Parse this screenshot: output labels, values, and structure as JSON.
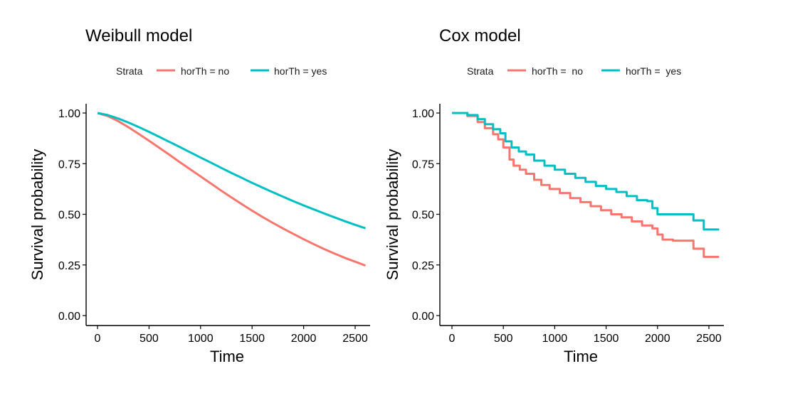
{
  "colors": {
    "no": "#F8766D",
    "yes": "#00BFC4",
    "axis": "#000000"
  },
  "chart_data": [
    {
      "type": "line",
      "title": "Weibull model",
      "xlabel": "Time",
      "ylabel": "Survival probability",
      "xlim": [
        0,
        2600
      ],
      "ylim": [
        0,
        1
      ],
      "x_ticks": [
        "0",
        "500",
        "1000",
        "1500",
        "2000",
        "2500"
      ],
      "y_ticks": [
        "0.00",
        "0.25",
        "0.50",
        "0.75",
        "1.00"
      ],
      "grid": false,
      "legend": {
        "title": "Strata",
        "position": "top",
        "entries": [
          "horTh = no",
          "horTh = yes"
        ]
      },
      "series": [
        {
          "name": "horTh = no",
          "color": "#F8766D",
          "step": false,
          "x": [
            0,
            100,
            200,
            300,
            400,
            500,
            600,
            700,
            800,
            900,
            1000,
            1100,
            1200,
            1300,
            1400,
            1500,
            1600,
            1700,
            1800,
            1900,
            2000,
            2100,
            2200,
            2300,
            2400,
            2500,
            2600
          ],
          "y": [
            1.0,
            0.985,
            0.96,
            0.93,
            0.897,
            0.863,
            0.828,
            0.793,
            0.757,
            0.722,
            0.687,
            0.652,
            0.617,
            0.583,
            0.55,
            0.518,
            0.487,
            0.458,
            0.43,
            0.403,
            0.377,
            0.352,
            0.328,
            0.306,
            0.285,
            0.266,
            0.247
          ]
        },
        {
          "name": "horTh = yes",
          "color": "#00BFC4",
          "step": false,
          "x": [
            0,
            100,
            200,
            300,
            400,
            500,
            600,
            700,
            800,
            900,
            1000,
            1100,
            1200,
            1300,
            1400,
            1500,
            1600,
            1700,
            1800,
            1900,
            2000,
            2100,
            2200,
            2300,
            2400,
            2500,
            2600
          ],
          "y": [
            1.0,
            0.99,
            0.973,
            0.953,
            0.931,
            0.907,
            0.882,
            0.857,
            0.832,
            0.806,
            0.78,
            0.755,
            0.729,
            0.704,
            0.68,
            0.655,
            0.632,
            0.609,
            0.587,
            0.565,
            0.544,
            0.524,
            0.504,
            0.485,
            0.466,
            0.448,
            0.431
          ]
        }
      ]
    },
    {
      "type": "line",
      "title": "Cox model",
      "xlabel": "Time",
      "ylabel": "Survival probability",
      "xlim": [
        0,
        2600
      ],
      "ylim": [
        0,
        1
      ],
      "x_ticks": [
        "0",
        "500",
        "1000",
        "1500",
        "2000",
        "2500"
      ],
      "y_ticks": [
        "0.00",
        "0.25",
        "0.50",
        "0.75",
        "1.00"
      ],
      "grid": false,
      "legend": {
        "title": "Strata",
        "position": "top",
        "entries": [
          "horTh =  no",
          "horTh =  yes"
        ]
      },
      "series": [
        {
          "name": "horTh =  no",
          "color": "#F8766D",
          "step": true,
          "x": [
            0,
            150,
            250,
            320,
            400,
            450,
            500,
            560,
            600,
            660,
            720,
            800,
            870,
            950,
            1050,
            1150,
            1250,
            1350,
            1450,
            1550,
            1650,
            1750,
            1850,
            1950,
            2000,
            2050,
            2150,
            2250,
            2350,
            2450,
            2600
          ],
          "y": [
            1.0,
            0.985,
            0.955,
            0.925,
            0.895,
            0.87,
            0.83,
            0.77,
            0.74,
            0.72,
            0.7,
            0.67,
            0.645,
            0.625,
            0.605,
            0.58,
            0.56,
            0.54,
            0.52,
            0.5,
            0.485,
            0.465,
            0.445,
            0.43,
            0.4,
            0.375,
            0.37,
            0.37,
            0.33,
            0.29,
            0.29
          ]
        },
        {
          "name": "horTh =  yes",
          "color": "#00BFC4",
          "step": true,
          "x": [
            0,
            150,
            250,
            320,
            400,
            470,
            520,
            580,
            650,
            720,
            800,
            900,
            1000,
            1100,
            1200,
            1300,
            1400,
            1500,
            1600,
            1700,
            1800,
            1900,
            1950,
            2000,
            2050,
            2150,
            2250,
            2350,
            2450,
            2600
          ],
          "y": [
            1.0,
            0.99,
            0.97,
            0.945,
            0.92,
            0.9,
            0.86,
            0.83,
            0.81,
            0.795,
            0.765,
            0.74,
            0.72,
            0.7,
            0.68,
            0.66,
            0.64,
            0.625,
            0.61,
            0.59,
            0.57,
            0.565,
            0.53,
            0.5,
            0.5,
            0.5,
            0.5,
            0.47,
            0.425,
            0.425
          ]
        }
      ]
    }
  ]
}
